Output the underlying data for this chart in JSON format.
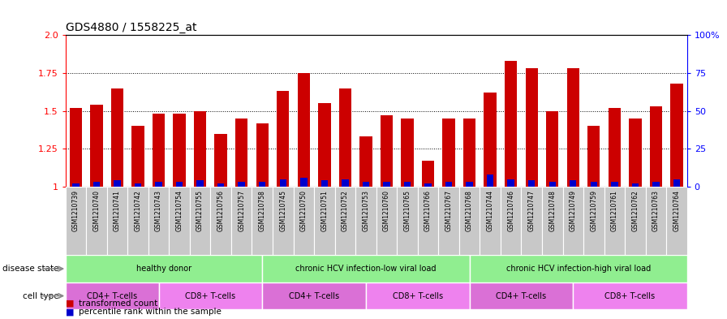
{
  "title": "GDS4880 / 1558225_at",
  "samples": [
    "GSM1210739",
    "GSM1210740",
    "GSM1210741",
    "GSM1210742",
    "GSM1210743",
    "GSM1210754",
    "GSM1210755",
    "GSM1210756",
    "GSM1210757",
    "GSM1210758",
    "GSM1210745",
    "GSM1210750",
    "GSM1210751",
    "GSM1210752",
    "GSM1210753",
    "GSM1210760",
    "GSM1210765",
    "GSM1210766",
    "GSM1210767",
    "GSM1210768",
    "GSM1210744",
    "GSM1210746",
    "GSM1210747",
    "GSM1210748",
    "GSM1210749",
    "GSM1210759",
    "GSM1210761",
    "GSM1210762",
    "GSM1210763",
    "GSM1210764"
  ],
  "transformed_counts": [
    1.52,
    1.54,
    1.65,
    1.4,
    1.48,
    1.48,
    1.5,
    1.35,
    1.45,
    1.42,
    1.63,
    1.75,
    1.55,
    1.65,
    1.33,
    1.47,
    1.45,
    1.17,
    1.45,
    1.45,
    1.62,
    1.83,
    1.78,
    1.5,
    1.78,
    1.4,
    1.52,
    1.45,
    1.53,
    1.68
  ],
  "percentile_ranks": [
    2,
    3,
    4,
    2,
    3,
    3,
    4,
    2,
    3,
    3,
    5,
    6,
    4,
    5,
    3,
    3,
    3,
    2,
    3,
    3,
    8,
    5,
    4,
    3,
    4,
    3,
    3,
    2,
    3,
    5
  ],
  "bar_color": "#cc0000",
  "percentile_color": "#0000cc",
  "ylim_left": [
    1.0,
    2.0
  ],
  "ylim_right": [
    0,
    100
  ],
  "yticks_left": [
    1.0,
    1.25,
    1.5,
    1.75,
    2.0
  ],
  "yticks_right": [
    0,
    25,
    50,
    75,
    100
  ],
  "ytick_labels_right": [
    "0",
    "25",
    "50",
    "75",
    "100%"
  ],
  "gridlines": [
    1.25,
    1.5,
    1.75
  ],
  "disease_state_label": "disease state",
  "cell_type_label": "cell type",
  "legend_red": "transformed count",
  "legend_blue": "percentile rank within the sample",
  "background_color": "#ffffff",
  "xticklabel_bg": "#c8c8c8",
  "disease_green": "#90ee90",
  "cell_cd4_color": "#da70d6",
  "cell_cd8_color": "#ee82ee",
  "dg_spans": [
    [
      0,
      9.5,
      "healthy donor"
    ],
    [
      9.5,
      19.5,
      "chronic HCV infection-low viral load"
    ],
    [
      19.5,
      30,
      "chronic HCV infection-high viral load"
    ]
  ],
  "cell_spans": [
    [
      0,
      4.5,
      "CD4+ T-cells",
      "cd4"
    ],
    [
      4.5,
      9.5,
      "CD8+ T-cells",
      "cd8"
    ],
    [
      9.5,
      14.5,
      "CD4+ T-cells",
      "cd4"
    ],
    [
      14.5,
      19.5,
      "CD8+ T-cells",
      "cd8"
    ],
    [
      19.5,
      24.5,
      "CD4+ T-cells",
      "cd4"
    ],
    [
      24.5,
      30,
      "CD8+ T-cells",
      "cd8"
    ]
  ]
}
